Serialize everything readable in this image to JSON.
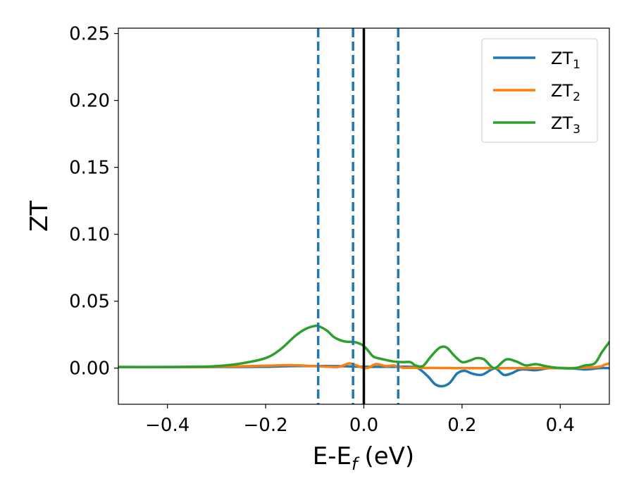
{
  "chart_data": {
    "type": "line",
    "xlabel": "E-E",
    "xlabel_sub": "f",
    "xlabel_unit": "(eV)",
    "ylabel": "ZT",
    "xlim": [
      -0.5,
      0.5
    ],
    "ylim": [
      -0.027,
      0.254
    ],
    "x_ticks": [
      -0.4,
      -0.2,
      0.0,
      0.2,
      0.4
    ],
    "x_tick_labels": [
      "−0.4",
      "−0.2",
      "0.0",
      "0.2",
      "0.4"
    ],
    "y_ticks": [
      0.0,
      0.05,
      0.1,
      0.15,
      0.2,
      0.25
    ],
    "y_tick_labels": [
      "0.00",
      "0.05",
      "0.10",
      "0.15",
      "0.20",
      "0.25"
    ],
    "grid": false,
    "legend_position": "top-right",
    "series": [
      {
        "name": "ZT",
        "name_sub": "1",
        "color": "#1f77b4",
        "points": [
          [
            -0.5,
            0.0008
          ],
          [
            -0.4,
            0.0008
          ],
          [
            -0.3,
            0.0008
          ],
          [
            -0.2,
            0.001
          ],
          [
            -0.15,
            0.0015
          ],
          [
            -0.1,
            0.0015
          ],
          [
            -0.05,
            0.0015
          ],
          [
            0.0,
            0.001
          ],
          [
            0.05,
            0.001
          ],
          [
            0.09,
            0.001
          ],
          [
            0.11,
            0.0
          ],
          [
            0.13,
            -0.006
          ],
          [
            0.145,
            -0.012
          ],
          [
            0.16,
            -0.0135
          ],
          [
            0.175,
            -0.011
          ],
          [
            0.19,
            -0.004
          ],
          [
            0.205,
            -0.002
          ],
          [
            0.22,
            -0.004
          ],
          [
            0.24,
            -0.005
          ],
          [
            0.26,
            -0.001
          ],
          [
            0.27,
            -0.0005
          ],
          [
            0.285,
            -0.005
          ],
          [
            0.3,
            -0.004
          ],
          [
            0.32,
            -0.001
          ],
          [
            0.35,
            -0.0015
          ],
          [
            0.38,
            0.0
          ],
          [
            0.42,
            0.0
          ],
          [
            0.45,
            -0.001
          ],
          [
            0.48,
            0.0
          ],
          [
            0.5,
            0.0
          ]
        ]
      },
      {
        "name": "ZT",
        "name_sub": "2",
        "color": "#ff7f0e",
        "points": [
          [
            -0.5,
            0.0008
          ],
          [
            -0.4,
            0.0008
          ],
          [
            -0.3,
            0.001
          ],
          [
            -0.2,
            0.0018
          ],
          [
            -0.15,
            0.0022
          ],
          [
            -0.1,
            0.0015
          ],
          [
            -0.07,
            0.001
          ],
          [
            -0.05,
            0.001
          ],
          [
            -0.03,
            0.0035
          ],
          [
            -0.015,
            0.002
          ],
          [
            0.0,
            0.0
          ],
          [
            0.01,
            0.0005
          ],
          [
            0.025,
            0.003
          ],
          [
            0.045,
            0.0015
          ],
          [
            0.06,
            0.002
          ],
          [
            0.08,
            0.0003
          ],
          [
            0.1,
            0.0002
          ],
          [
            0.2,
            0.0
          ],
          [
            0.3,
            0.0
          ],
          [
            0.4,
            0.0
          ],
          [
            0.45,
            0.0003
          ],
          [
            0.48,
            0.001
          ],
          [
            0.49,
            0.0025
          ],
          [
            0.5,
            0.0035
          ]
        ]
      },
      {
        "name": "ZT",
        "name_sub": "3",
        "color": "#2ca02c",
        "points": [
          [
            -0.5,
            0.0008
          ],
          [
            -0.4,
            0.0008
          ],
          [
            -0.35,
            0.001
          ],
          [
            -0.3,
            0.0015
          ],
          [
            -0.25,
            0.0035
          ],
          [
            -0.2,
            0.0075
          ],
          [
            -0.17,
            0.014
          ],
          [
            -0.14,
            0.024
          ],
          [
            -0.12,
            0.029
          ],
          [
            -0.1,
            0.0315
          ],
          [
            -0.09,
            0.031
          ],
          [
            -0.075,
            0.028
          ],
          [
            -0.06,
            0.023
          ],
          [
            -0.04,
            0.02
          ],
          [
            -0.02,
            0.0195
          ],
          [
            -0.01,
            0.0185
          ],
          [
            0.0,
            0.0165
          ],
          [
            0.01,
            0.0125
          ],
          [
            0.02,
            0.0085
          ],
          [
            0.04,
            0.0065
          ],
          [
            0.06,
            0.005
          ],
          [
            0.08,
            0.0045
          ],
          [
            0.095,
            0.0045
          ],
          [
            0.105,
            0.002
          ],
          [
            0.12,
            0.0015
          ],
          [
            0.135,
            0.008
          ],
          [
            0.15,
            0.014
          ],
          [
            0.16,
            0.016
          ],
          [
            0.17,
            0.015
          ],
          [
            0.185,
            0.009
          ],
          [
            0.2,
            0.0045
          ],
          [
            0.215,
            0.0055
          ],
          [
            0.23,
            0.0075
          ],
          [
            0.245,
            0.0065
          ],
          [
            0.26,
            0.001
          ],
          [
            0.27,
            0.0005
          ],
          [
            0.29,
            0.0065
          ],
          [
            0.31,
            0.005
          ],
          [
            0.33,
            0.002
          ],
          [
            0.35,
            0.003
          ],
          [
            0.37,
            0.0015
          ],
          [
            0.4,
            0.0
          ],
          [
            0.43,
            0.0
          ],
          [
            0.45,
            0.002
          ],
          [
            0.47,
            0.0035
          ],
          [
            0.485,
            0.012
          ],
          [
            0.5,
            0.0195
          ]
        ]
      }
    ],
    "vertical_lines": [
      {
        "x": -0.093,
        "style": "dashed",
        "color": "#1f77b4"
      },
      {
        "x": -0.022,
        "style": "dashed",
        "color": "#1f77b4"
      },
      {
        "x": 0.0,
        "style": "solid",
        "color": "#000000"
      },
      {
        "x": 0.07,
        "style": "dashed",
        "color": "#1f77b4"
      }
    ]
  }
}
